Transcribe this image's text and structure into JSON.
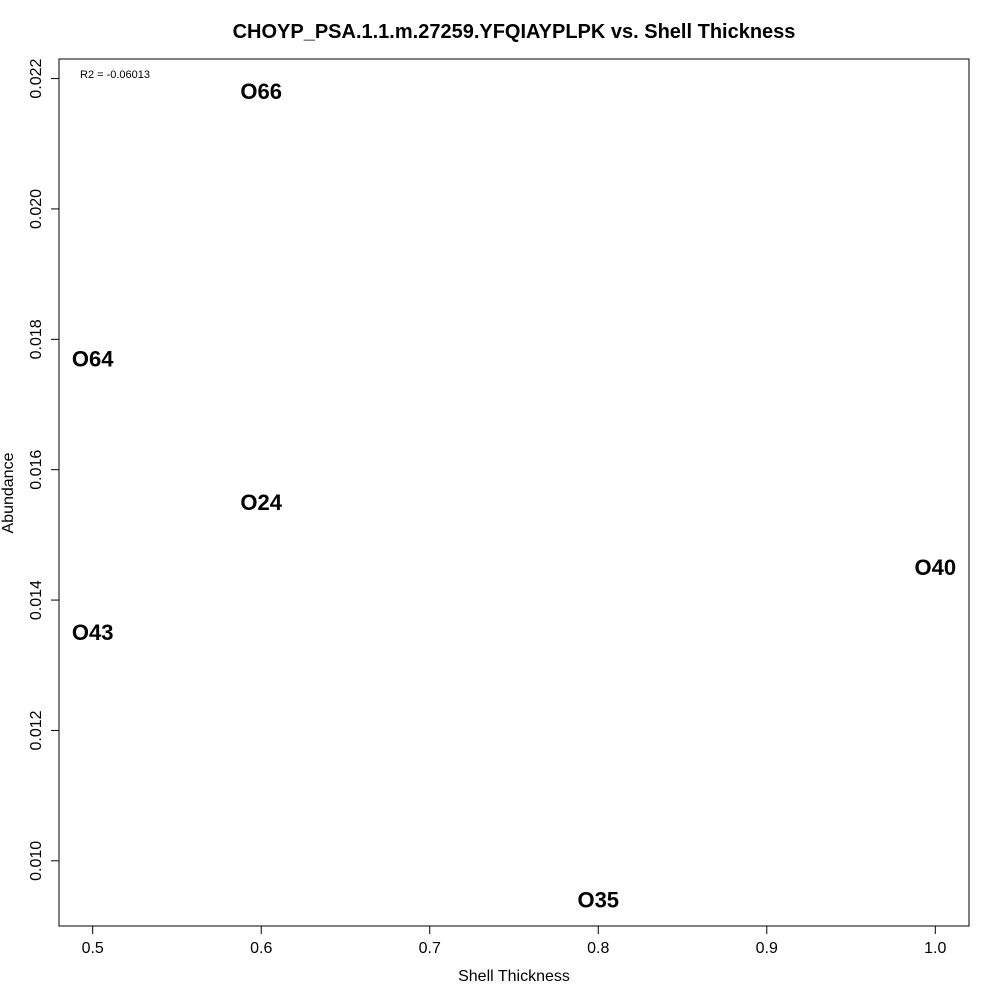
{
  "chart_data": {
    "type": "scatter",
    "title": "CHOYP_PSA.1.1.m.27259.YFQIAYPLPK vs. Shell Thickness",
    "xlabel": "Shell Thickness",
    "ylabel": "Abundance",
    "annotation": "R2 = -0.06013",
    "xlim": [
      0.48,
      1.02
    ],
    "ylim": [
      0.009,
      0.0223
    ],
    "xticks": [
      0.5,
      0.6,
      0.7,
      0.8,
      0.9,
      1.0
    ],
    "xtick_labels": [
      "0.5",
      "0.6",
      "0.7",
      "0.8",
      "0.9",
      "1.0"
    ],
    "yticks": [
      0.01,
      0.012,
      0.014,
      0.016,
      0.018,
      0.02,
      0.022
    ],
    "ytick_labels": [
      "0.010",
      "0.012",
      "0.014",
      "0.016",
      "0.018",
      "0.020",
      "0.022"
    ],
    "grid": false,
    "points": [
      {
        "label": "O66",
        "x": 0.6,
        "y": 0.0218
      },
      {
        "label": "O64",
        "x": 0.5,
        "y": 0.0177
      },
      {
        "label": "O24",
        "x": 0.6,
        "y": 0.0155
      },
      {
        "label": "O40",
        "x": 1.0,
        "y": 0.0145
      },
      {
        "label": "O43",
        "x": 0.5,
        "y": 0.0135
      },
      {
        "label": "O35",
        "x": 0.8,
        "y": 0.0094
      }
    ]
  }
}
